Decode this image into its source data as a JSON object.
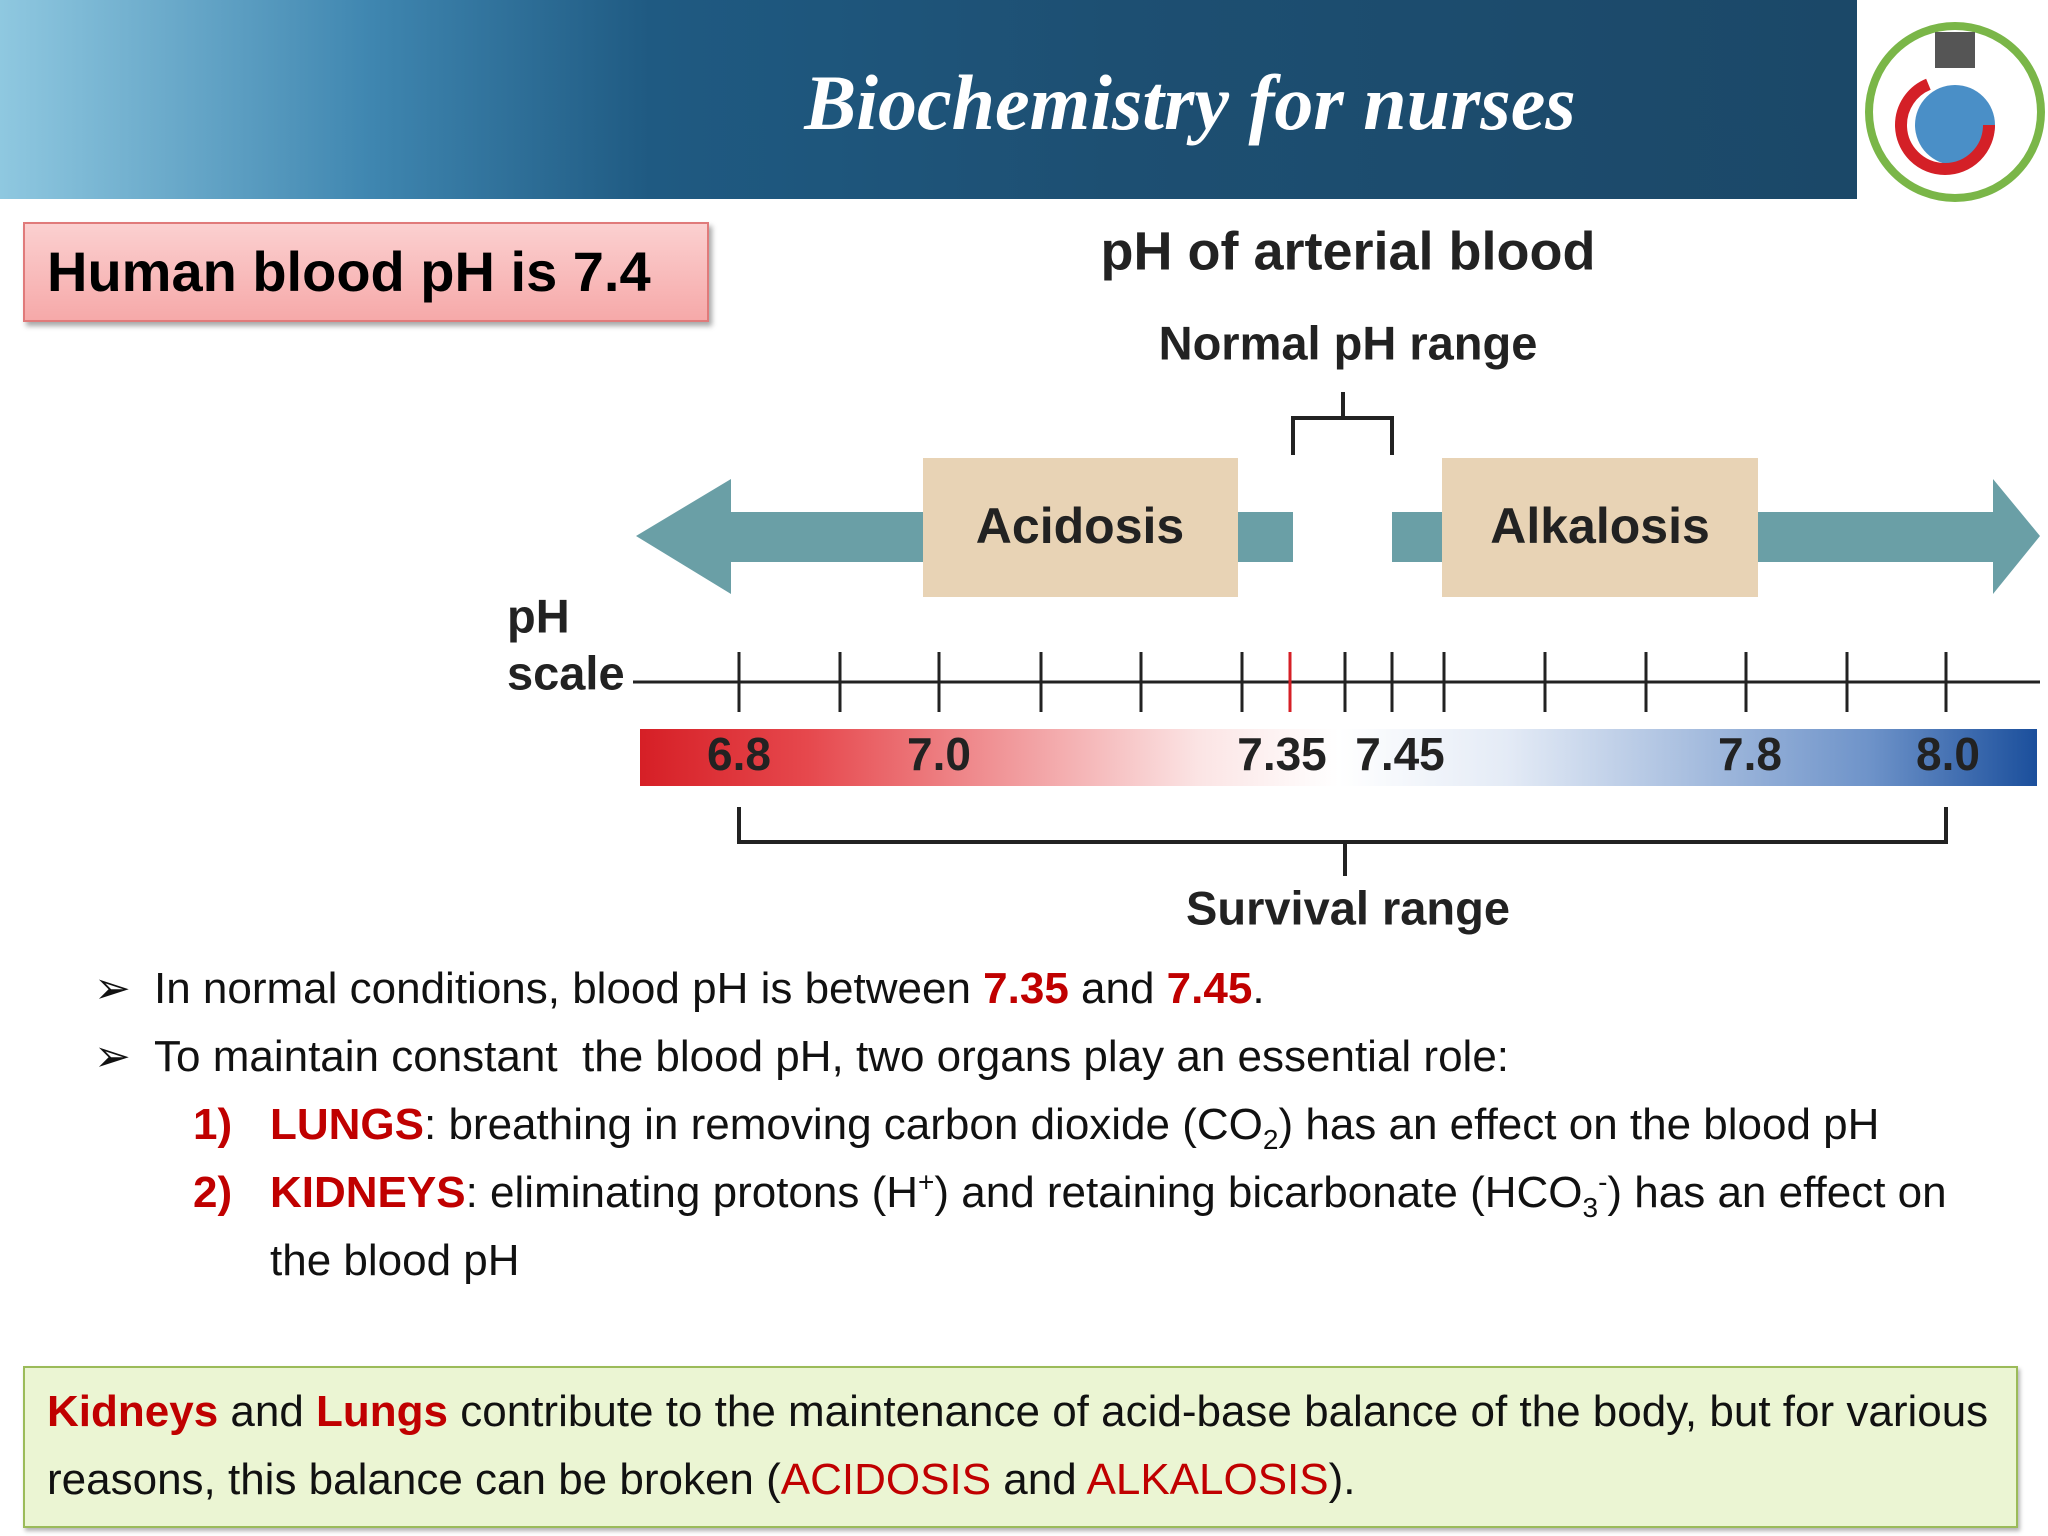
{
  "header": {
    "title": "Biochemistry for nurses"
  },
  "callout": "Human blood pH is 7.4",
  "diagram": {
    "title": "pH of arterial blood",
    "normal_range": "Normal pH range",
    "acidosis": "Acidosis",
    "alkalosis": "Alkalosis",
    "scale_label": [
      "pH",
      "scale"
    ],
    "scale_values": [
      "6.8",
      "7.0",
      "7.35",
      "7.45",
      "7.8",
      "8.0"
    ],
    "survival_range": "Survival range"
  },
  "bullets": [
    [
      "In normal conditions, blood pH is between ",
      "7.35",
      " and ",
      "7.45",
      "."
    ],
    [
      "To maintain constant  the blood pH, two organs play an essential role:"
    ]
  ],
  "numbered": [
    {
      "marker": "1)",
      "parts": [
        "LUNGS",
        ": breathing in removing carbon dioxide (CO",
        "2",
        ") has an effect on the blood pH"
      ]
    },
    {
      "marker": "2)",
      "parts": [
        "KIDNEYS",
        ": eliminating protons (H",
        "+",
        ") and retaining bicarbonate (HCO",
        "3",
        "-",
        ") has an effect on the blood pH"
      ]
    }
  ],
  "summary": [
    "Kidneys",
    " and ",
    "Lungs",
    " contribute to the maintenance of acid-base balance of the body, but for various reasons, this balance can be broken (",
    "ACIDOSIS",
    " and ",
    "ALKALOSIS",
    ")."
  ]
}
